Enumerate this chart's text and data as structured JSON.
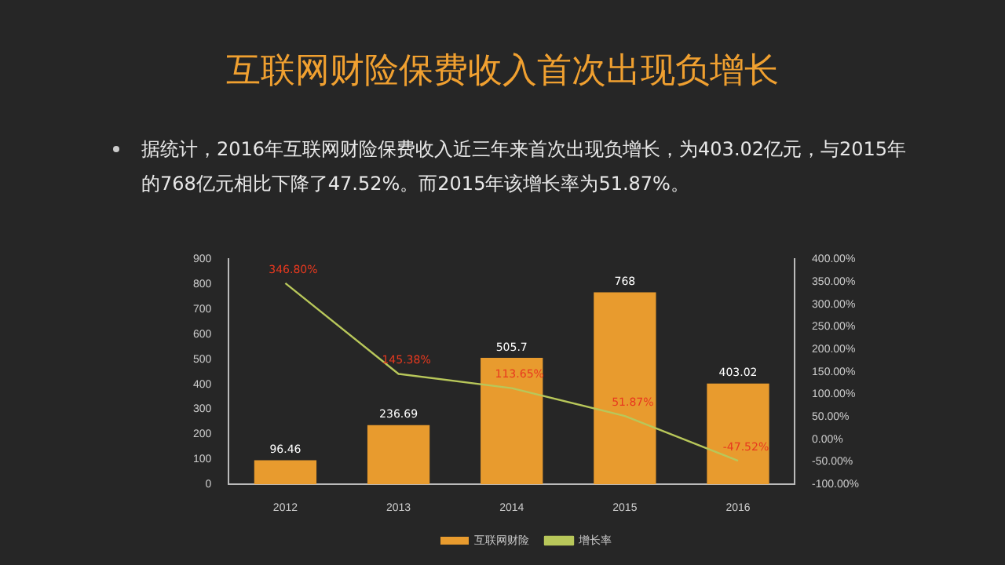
{
  "chart_data": {
    "type": "bar",
    "title": "互联网财险保费收入首次出现负增长",
    "annotations": [
      "据统计，2016年互联网财险保费收入近三年来首次出现负增长，为403.02亿元，与2015年的768亿元相比下降了47.52%。而2015年该增长率为51.87%。"
    ],
    "categories": [
      "2012",
      "2013",
      "2014",
      "2015",
      "2016"
    ],
    "series": [
      {
        "name": "互联网财险",
        "color": "#e89b2e",
        "values": [
          96.46,
          236.69,
          505.7,
          768,
          403.02
        ],
        "value_labels": [
          "96.46",
          "236.69",
          "505.7",
          "768",
          "403.02"
        ]
      },
      {
        "name": "增长率",
        "type": "line",
        "axis": "y2",
        "color": "#b8c75a",
        "values": [
          346.8,
          145.38,
          113.65,
          51.87,
          -47.52
        ],
        "value_labels": [
          "346.80%",
          "145.38%",
          "113.65%",
          "51.87%",
          "-47.52%"
        ]
      }
    ],
    "ylim": [
      0,
      900
    ],
    "yticks": [
      0,
      100,
      200,
      300,
      400,
      500,
      600,
      700,
      800,
      900
    ],
    "y2lim": [
      -100,
      400
    ],
    "y2ticks": [
      {
        "value": -100,
        "label": "-100.00%"
      },
      {
        "value": -50,
        "label": "-50.00%"
      },
      {
        "value": 0,
        "label": "0.00%"
      },
      {
        "value": 50,
        "label": "50.00%"
      },
      {
        "value": 100,
        "label": "100.00%"
      },
      {
        "value": 150,
        "label": "150.00%"
      },
      {
        "value": 200,
        "label": "200.00%"
      },
      {
        "value": 250,
        "label": "250.00%"
      },
      {
        "value": 300,
        "label": "300.00%"
      },
      {
        "value": 350,
        "label": "350.00%"
      },
      {
        "value": 400,
        "label": "400.00%"
      }
    ],
    "grid": false,
    "legend": "bottom",
    "marker": "none"
  }
}
